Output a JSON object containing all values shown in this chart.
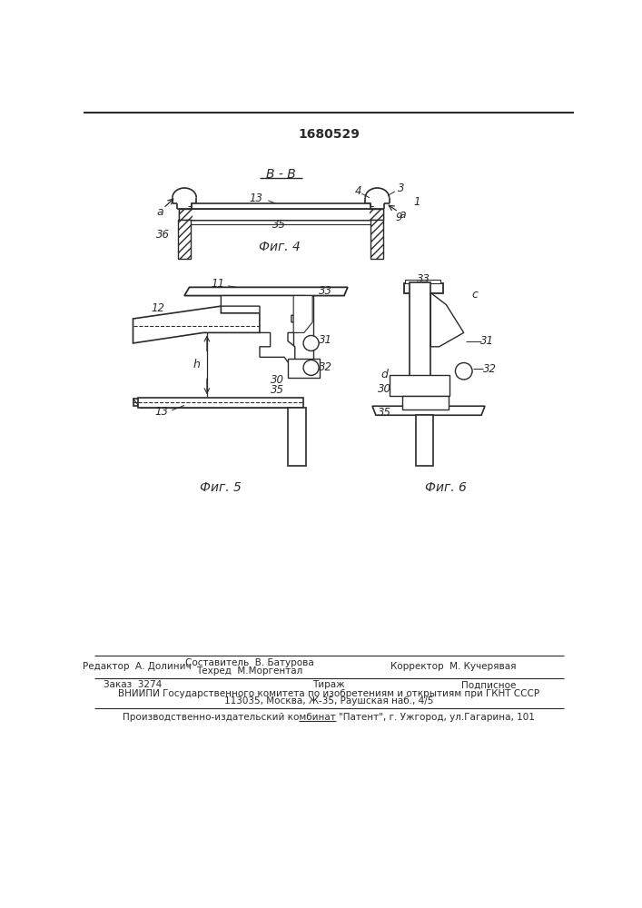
{
  "patent_number": "1680529",
  "fig4_label": "Фиг. 4",
  "fig5_label": "Фиг. 5",
  "fig6_label": "Фиг. 6",
  "section_label": "В - В",
  "bg_color": "#ffffff",
  "line_color": "#2a2a2a",
  "footer_editor": "Редактор  А. Долинич",
  "footer_compiler1": "Составитель  В. Батурова",
  "footer_compiler2": "Техред  М.Моргентал",
  "footer_corrector": "Корректор  М. Кучерявая",
  "footer_order": "Заказ  3274",
  "footer_tirazh": "Тираж",
  "footer_podp": "Подписное",
  "footer_vniipи": "ВНИИПИ Государственного комитета по изобретениям и открытиям при ГКНТ СССР",
  "footer_addr": "113035, Москва, Ж-35, Раушская наб., 4/5",
  "footer_patent": "Производственно-издательский комбинат \"Патент\", г. Ужгород, ул.Гагарина, 101"
}
